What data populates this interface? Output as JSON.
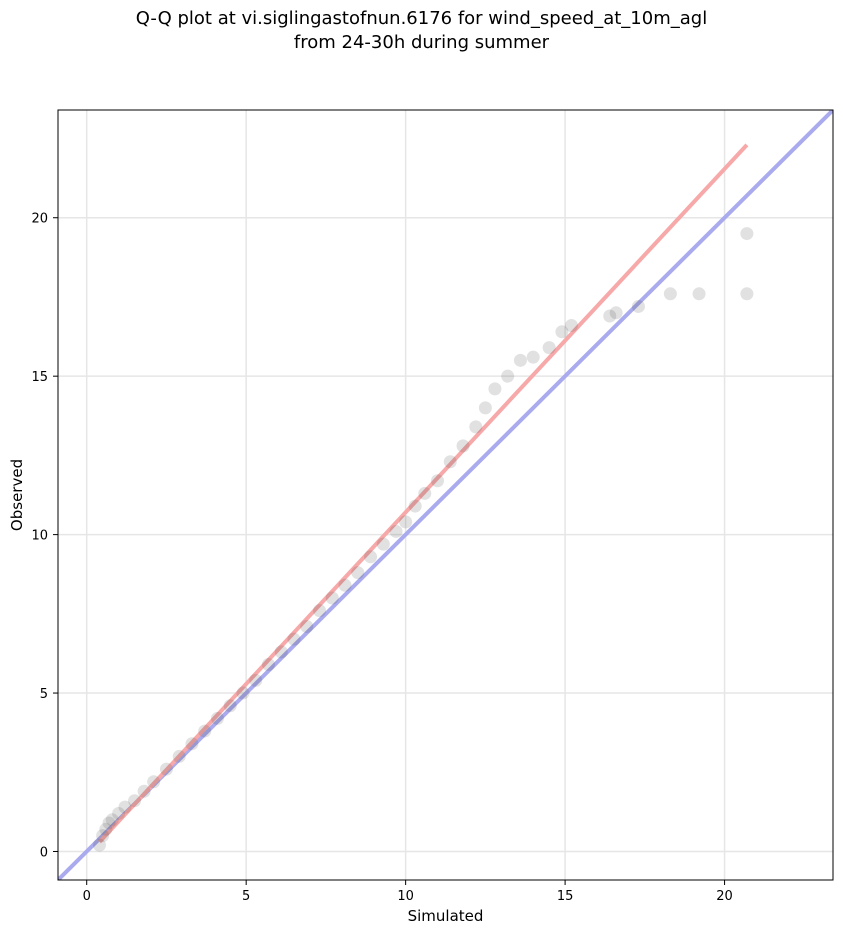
{
  "chart_data": {
    "type": "scatter",
    "title": "Q-Q plot at vi.siglingastofnun.6176 for wind_speed_at_10m_agl",
    "subtitle": "from 24-30h during summer",
    "xlabel": "Simulated",
    "ylabel": "Observed",
    "xlim": [
      -0.9,
      23.4
    ],
    "ylim": [
      -0.9,
      23.4
    ],
    "xticks": [
      0,
      5,
      10,
      15,
      20
    ],
    "yticks": [
      0,
      5,
      10,
      15,
      20
    ],
    "grid": true,
    "point_color": "#444444",
    "qq_points": [
      [
        0.4,
        0.2
      ],
      [
        0.5,
        0.5
      ],
      [
        0.6,
        0.7
      ],
      [
        0.7,
        0.9
      ],
      [
        0.8,
        1.0
      ],
      [
        1.0,
        1.2
      ],
      [
        1.2,
        1.4
      ],
      [
        1.5,
        1.6
      ],
      [
        1.8,
        1.9
      ],
      [
        2.1,
        2.2
      ],
      [
        2.5,
        2.6
      ],
      [
        2.9,
        3.0
      ],
      [
        3.3,
        3.4
      ],
      [
        3.7,
        3.8
      ],
      [
        4.1,
        4.2
      ],
      [
        4.5,
        4.6
      ],
      [
        4.9,
        5.0
      ],
      [
        5.3,
        5.4
      ],
      [
        5.7,
        5.9
      ],
      [
        6.1,
        6.3
      ],
      [
        6.5,
        6.7
      ],
      [
        6.9,
        7.1
      ],
      [
        7.3,
        7.6
      ],
      [
        7.7,
        8.0
      ],
      [
        8.1,
        8.4
      ],
      [
        8.5,
        8.8
      ],
      [
        8.9,
        9.3
      ],
      [
        9.3,
        9.7
      ],
      [
        9.7,
        10.1
      ],
      [
        10.0,
        10.4
      ],
      [
        10.3,
        10.9
      ],
      [
        10.6,
        11.3
      ],
      [
        11.0,
        11.7
      ],
      [
        11.4,
        12.3
      ],
      [
        11.8,
        12.8
      ],
      [
        12.2,
        13.4
      ],
      [
        12.5,
        14.0
      ],
      [
        12.8,
        14.6
      ],
      [
        13.2,
        15.0
      ],
      [
        13.6,
        15.5
      ],
      [
        14.0,
        15.6
      ],
      [
        14.5,
        15.9
      ],
      [
        14.9,
        16.4
      ],
      [
        15.2,
        16.6
      ],
      [
        16.4,
        16.9
      ],
      [
        16.6,
        17.0
      ],
      [
        17.3,
        17.2
      ],
      [
        18.3,
        17.6
      ],
      [
        19.2,
        17.6
      ],
      [
        20.7,
        17.6
      ],
      [
        20.7,
        19.5
      ]
    ],
    "reference_lines": [
      {
        "name": "y = x",
        "color": "#aaaaee",
        "points": [
          [
            -0.9,
            -0.9
          ],
          [
            23.4,
            23.4
          ]
        ]
      },
      {
        "name": "fit",
        "color": "#f7a8a8",
        "points": [
          [
            0.4,
            0.3
          ],
          [
            20.7,
            22.3
          ]
        ]
      }
    ]
  }
}
